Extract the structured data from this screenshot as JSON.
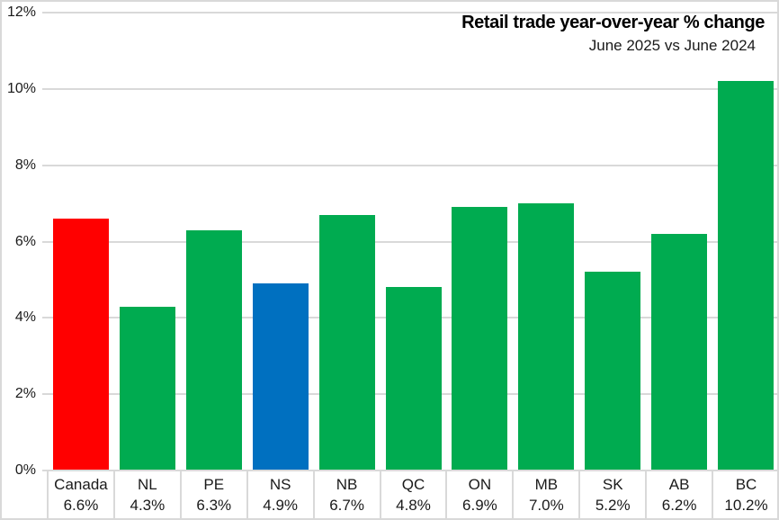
{
  "chart_data": {
    "type": "bar",
    "title": "Retail trade year-over-year % change",
    "subtitle": "June 2025 vs June 2024",
    "categories": [
      "Canada",
      "NL",
      "PE",
      "NS",
      "NB",
      "QC",
      "ON",
      "MB",
      "SK",
      "AB",
      "BC"
    ],
    "values": [
      6.6,
      4.3,
      6.3,
      4.9,
      6.7,
      4.8,
      6.9,
      7.0,
      5.2,
      6.2,
      10.2
    ],
    "value_labels": [
      "6.6%",
      "4.3%",
      "6.3%",
      "4.9%",
      "6.7%",
      "4.8%",
      "6.9%",
      "7.0%",
      "5.2%",
      "6.2%",
      "10.2%"
    ],
    "bar_colors": [
      "#FF0000",
      "#00AB50",
      "#00AB50",
      "#0070C0",
      "#00AB50",
      "#00AB50",
      "#00AB50",
      "#00AB50",
      "#00AB50",
      "#00AB50",
      "#00AB50"
    ],
    "ylim": [
      0,
      12
    ],
    "y_tick_values": [
      0,
      2,
      4,
      6,
      8,
      10,
      12
    ],
    "y_tick_labels": [
      "0%",
      "2%",
      "4%",
      "6%",
      "8%",
      "10%",
      "12%"
    ],
    "grid": true,
    "legend": "none"
  },
  "colors": {
    "highlight_canada": "#FF0000",
    "highlight_ns": "#0070C0",
    "default_bar": "#00AB50",
    "gridline": "#D9D9D9",
    "border": "#D9D9D9",
    "text": "#1a1a1a"
  }
}
